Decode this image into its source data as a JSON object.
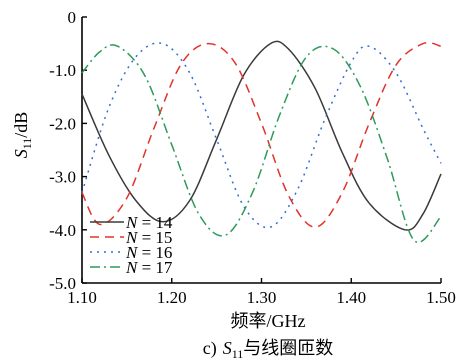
{
  "chart_data": {
    "type": "line",
    "xlabel": "频率/GHz",
    "ylabel_main": "S",
    "ylabel_sub": "11",
    "ylabel_unit": "/dB",
    "caption_prefix": "c)",
    "caption_main": "S",
    "caption_sub": "11",
    "caption_suffix": "与线圈匝数",
    "xlim": [
      1.1,
      1.5
    ],
    "ylim": [
      -5.0,
      0
    ],
    "x_ticks": [
      1.1,
      1.2,
      1.3,
      1.4,
      1.5
    ],
    "x_tick_labels": [
      "1.10",
      "1.20",
      "1.30",
      "1.40",
      "1.50"
    ],
    "y_ticks": [
      0,
      -1.0,
      -2.0,
      -3.0,
      -4.0,
      -5.0
    ],
    "y_tick_labels": [
      "0",
      "-1.0",
      "-2.0",
      "-3.0",
      "-4.0",
      "-5.0"
    ],
    "legend_position": "bottom-left",
    "series": [
      {
        "name": "N = 14",
        "label_var": "N",
        "label_eq": "= 14",
        "color": "#3a3a3a",
        "dash": "solid",
        "x": [
          1.1,
          1.13,
          1.16,
          1.19,
          1.22,
          1.25,
          1.28,
          1.31,
          1.33,
          1.36,
          1.39,
          1.42,
          1.46,
          1.48,
          1.5
        ],
        "y": [
          -1.45,
          -2.6,
          -3.45,
          -3.85,
          -3.45,
          -2.3,
          -1.1,
          -0.5,
          -0.6,
          -1.35,
          -2.55,
          -3.5,
          -4.0,
          -3.7,
          -2.95
        ]
      },
      {
        "name": "N = 15",
        "label_var": "N",
        "label_eq": "= 15",
        "color": "#e0332b",
        "dash": "9,6",
        "x": [
          1.1,
          1.12,
          1.15,
          1.18,
          1.21,
          1.24,
          1.27,
          1.3,
          1.33,
          1.36,
          1.39,
          1.42,
          1.45,
          1.48,
          1.5
        ],
        "y": [
          -3.3,
          -3.9,
          -3.4,
          -2.1,
          -0.9,
          -0.5,
          -0.85,
          -2.0,
          -3.35,
          -3.95,
          -3.3,
          -2.0,
          -0.9,
          -0.5,
          -0.55
        ]
      },
      {
        "name": "N = 16",
        "label_var": "N",
        "label_eq": "= 16",
        "color": "#2f6fd4",
        "dash": "2,5",
        "x": [
          1.1,
          1.13,
          1.16,
          1.19,
          1.22,
          1.25,
          1.28,
          1.31,
          1.34,
          1.37,
          1.4,
          1.42,
          1.45,
          1.48,
          1.5
        ],
        "y": [
          -3.3,
          -1.7,
          -0.75,
          -0.5,
          -1.05,
          -2.3,
          -3.55,
          -3.95,
          -3.25,
          -1.95,
          -0.85,
          -0.55,
          -1.05,
          -2.1,
          -2.75
        ]
      },
      {
        "name": "N = 17",
        "label_var": "N",
        "label_eq": "= 17",
        "color": "#2e9a5a",
        "dash": "10,4,2,4",
        "x": [
          1.1,
          1.12,
          1.14,
          1.17,
          1.2,
          1.23,
          1.26,
          1.29,
          1.32,
          1.35,
          1.38,
          1.41,
          1.44,
          1.47,
          1.5
        ],
        "y": [
          -1.05,
          -0.65,
          -0.55,
          -1.1,
          -2.4,
          -3.7,
          -4.1,
          -3.3,
          -1.85,
          -0.75,
          -0.6,
          -1.3,
          -2.65,
          -4.2,
          -3.75
        ]
      }
    ]
  }
}
